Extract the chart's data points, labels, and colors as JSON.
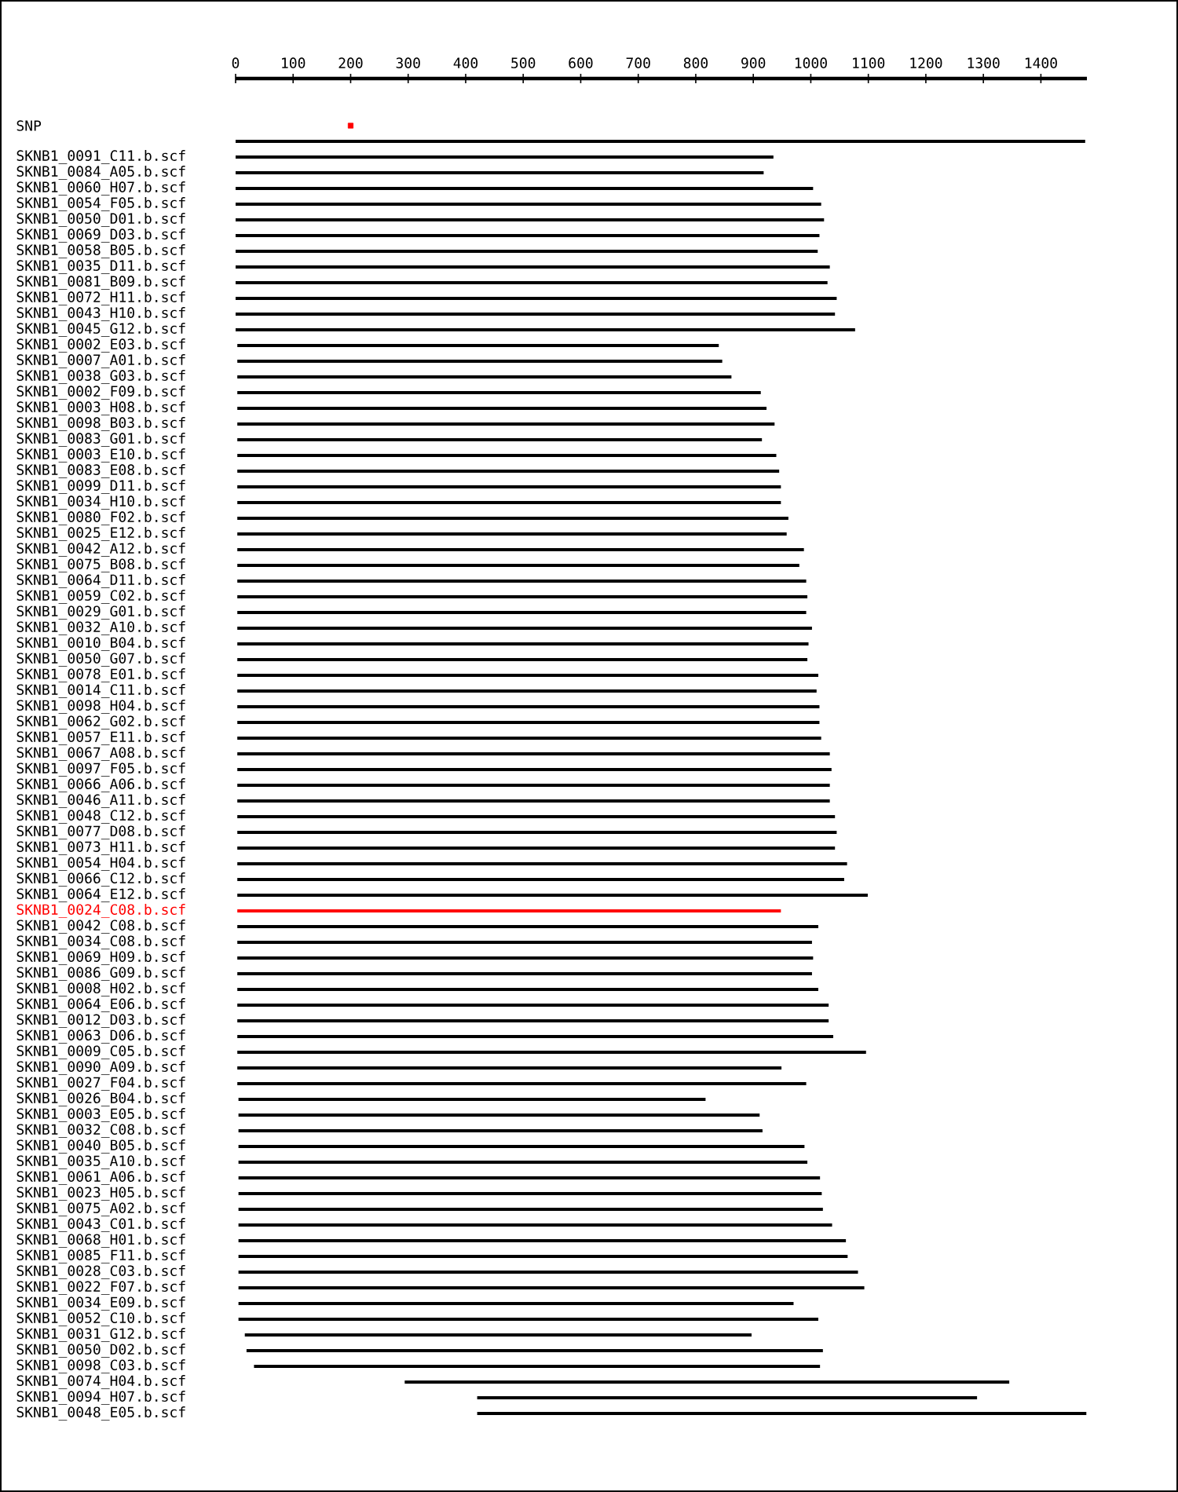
{
  "chart_data": {
    "type": "bar",
    "orientation": "horizontal",
    "categories": [
      "SNP",
      null,
      "SKNB1_0091_C11.b.scf",
      "SKNB1_0084_A05.b.scf",
      "SKNB1_0060_H07.b.scf",
      "SKNB1_0054_F05.b.scf",
      "SKNB1_0050_D01.b.scf",
      "SKNB1_0069_D03.b.scf",
      "SKNB1_0058_B05.b.scf",
      "SKNB1_0035_D11.b.scf",
      "SKNB1_0081_B09.b.scf",
      "SKNB1_0072_H11.b.scf",
      "SKNB1_0043_H10.b.scf",
      "SKNB1_0045_G12.b.scf",
      "SKNB1_0002_E03.b.scf",
      "SKNB1_0007_A01.b.scf",
      "SKNB1_0038_G03.b.scf",
      "SKNB1_0002_F09.b.scf",
      "SKNB1_0003_H08.b.scf",
      "SKNB1_0098_B03.b.scf",
      "SKNB1_0083_G01.b.scf",
      "SKNB1_0003_E10.b.scf",
      "SKNB1_0083_E08.b.scf",
      "SKNB1_0099_D11.b.scf",
      "SKNB1_0034_H10.b.scf",
      "SKNB1_0080_F02.b.scf",
      "SKNB1_0025_E12.b.scf",
      "SKNB1_0042_A12.b.scf",
      "SKNB1_0075_B08.b.scf",
      "SKNB1_0064_D11.b.scf",
      "SKNB1_0059_C02.b.scf",
      "SKNB1_0029_G01.b.scf",
      "SKNB1_0032_A10.b.scf",
      "SKNB1_0010_B04.b.scf",
      "SKNB1_0050_G07.b.scf",
      "SKNB1_0078_E01.b.scf",
      "SKNB1_0014_C11.b.scf",
      "SKNB1_0098_H04.b.scf",
      "SKNB1_0062_G02.b.scf",
      "SKNB1_0057_E11.b.scf",
      "SKNB1_0067_A08.b.scf",
      "SKNB1_0097_F05.b.scf",
      "SKNB1_0066_A06.b.scf",
      "SKNB1_0046_A11.b.scf",
      "SKNB1_0048_C12.b.scf",
      "SKNB1_0077_D08.b.scf",
      "SKNB1_0073_H11.b.scf",
      "SKNB1_0054_H04.b.scf",
      "SKNB1_0066_C12.b.scf",
      "SKNB1_0064_E12.b.scf",
      "SKNB1_0024_C08.b.scf",
      "SKNB1_0042_C08.b.scf",
      "SKNB1_0034_C08.b.scf",
      "SKNB1_0069_H09.b.scf",
      "SKNB1_0086_G09.b.scf",
      "SKNB1_0008_H02.b.scf",
      "SKNB1_0064_E06.b.scf",
      "SKNB1_0012_D03.b.scf",
      "SKNB1_0063_D06.b.scf",
      "SKNB1_0009_C05.b.scf",
      "SKNB1_0090_A09.b.scf",
      "SKNB1_0027_F04.b.scf",
      "SKNB1_0026_B04.b.scf",
      "SKNB1_0003_E05.b.scf",
      "SKNB1_0032_C08.b.scf",
      "SKNB1_0040_B05.b.scf",
      "SKNB1_0035_A10.b.scf",
      "SKNB1_0061_A06.b.scf",
      "SKNB1_0023_H05.b.scf",
      "SKNB1_0075_A02.b.scf",
      "SKNB1_0043_C01.b.scf",
      "SKNB1_0068_H01.b.scf",
      "SKNB1_0085_F11.b.scf",
      "SKNB1_0028_C03.b.scf",
      "SKNB1_0022_F07.b.scf",
      "SKNB1_0034_E09.b.scf",
      "SKNB1_0052_C10.b.scf",
      "SKNB1_0031_G12.b.scf",
      "SKNB1_0050_D02.b.scf",
      "SKNB1_0098_C03.b.scf",
      "SKNB1_0074_H04.b.scf",
      "SKNB1_0094_H07.b.scf",
      "SKNB1_0048_E05.b.scf"
    ],
    "xlim": [
      0,
      1480
    ],
    "xticks": [
      0,
      100,
      200,
      300,
      400,
      500,
      600,
      700,
      800,
      900,
      1000,
      1100,
      1200,
      1300,
      1400
    ],
    "series": [
      {
        "values": [
          null,
          1477,
          935,
          918,
          1004,
          1018,
          1023,
          1015,
          1012,
          1033,
          1029,
          1045,
          1042,
          1077,
          837,
          843,
          859,
          910,
          920,
          934,
          912,
          937,
          942,
          945,
          945,
          958,
          955,
          985,
          977,
          989,
          991,
          989,
          999,
          993,
          991,
          1010,
          1007,
          1012,
          1012,
          1015,
          1030,
          1033,
          1030,
          1030,
          1039,
          1042,
          1039,
          1060,
          1055,
          1096,
          945,
          1010,
          999,
          1001,
          999,
          1010,
          1028,
          1028,
          1036,
          1093,
          946,
          989,
          812,
          906,
          911,
          984,
          989,
          1011,
          1014,
          1016,
          1032,
          1056,
          1059,
          1077,
          1088,
          965,
          1008,
          881,
          1002,
          984,
          1051,
          869,
          1059
        ],
        "base": [
          null,
          0,
          0,
          0,
          0,
          0,
          0,
          0,
          0,
          0,
          0,
          0,
          0,
          0,
          3,
          3,
          3,
          3,
          3,
          3,
          3,
          3,
          3,
          3,
          3,
          3,
          3,
          3,
          3,
          3,
          3,
          3,
          3,
          3,
          3,
          3,
          3,
          3,
          3,
          3,
          3,
          3,
          3,
          3,
          3,
          3,
          3,
          3,
          3,
          3,
          3,
          3,
          3,
          3,
          3,
          3,
          3,
          3,
          3,
          3,
          3,
          3,
          5,
          5,
          5,
          5,
          5,
          5,
          5,
          5,
          5,
          5,
          5,
          5,
          5,
          5,
          5,
          16,
          19,
          32,
          294,
          420,
          420
        ],
        "colors": [
          "#000000",
          "#000000",
          "#000000",
          "#000000",
          "#000000",
          "#000000",
          "#000000",
          "#000000",
          "#000000",
          "#000000",
          "#000000",
          "#000000",
          "#000000",
          "#000000",
          "#000000",
          "#000000",
          "#000000",
          "#000000",
          "#000000",
          "#000000",
          "#000000",
          "#000000",
          "#000000",
          "#000000",
          "#000000",
          "#000000",
          "#000000",
          "#000000",
          "#000000",
          "#000000",
          "#000000",
          "#000000",
          "#000000",
          "#000000",
          "#000000",
          "#000000",
          "#000000",
          "#000000",
          "#000000",
          "#000000",
          "#000000",
          "#000000",
          "#000000",
          "#000000",
          "#000000",
          "#000000",
          "#000000",
          "#000000",
          "#000000",
          "#000000",
          "#ff0000",
          "#000000",
          "#000000",
          "#000000",
          "#000000",
          "#000000",
          "#000000",
          "#000000",
          "#000000",
          "#000000",
          "#000000",
          "#000000",
          "#000000",
          "#000000",
          "#000000",
          "#000000",
          "#000000",
          "#000000",
          "#000000",
          "#000000",
          "#000000",
          "#000000",
          "#000000",
          "#000000",
          "#000000",
          "#000000",
          "#000000",
          "#000000",
          "#000000",
          "#000000",
          "#000000",
          "#000000",
          "#000000"
        ]
      },
      {
        "type": "scatter",
        "color": "#ff0000",
        "marker": "square",
        "values": [
          200,
          null,
          null,
          null,
          null,
          null,
          null,
          null,
          null,
          null,
          null,
          null,
          null,
          null,
          null,
          null,
          null,
          null,
          null,
          null,
          null,
          null,
          null,
          null,
          null,
          null,
          null,
          null,
          null,
          null,
          null,
          null,
          null,
          null,
          null,
          null,
          null,
          null,
          null,
          null,
          null,
          null,
          null,
          null,
          null,
          null,
          null,
          null,
          null,
          null,
          null,
          null,
          null,
          null,
          null,
          null,
          null,
          null,
          null,
          null,
          null,
          null,
          null,
          null,
          null,
          null,
          null,
          null,
          null,
          null,
          null,
          null,
          null,
          null,
          null,
          null,
          null,
          null,
          null,
          null,
          null,
          null,
          null
        ]
      }
    ]
  }
}
